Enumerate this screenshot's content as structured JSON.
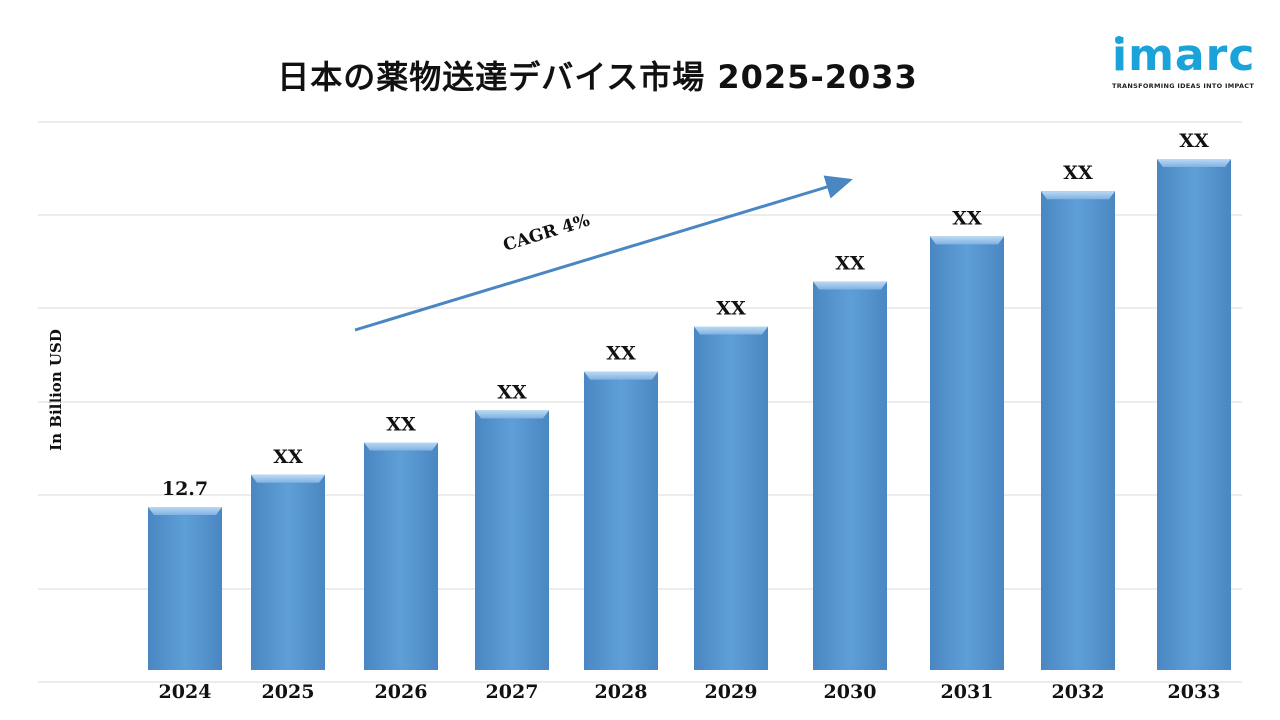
{
  "title": "日本の薬物送達デバイス市場 2025-2033",
  "logo": {
    "word": "imarc",
    "tagline": "TRANSFORMING IDEAS INTO IMPACT"
  },
  "chart_data": {
    "type": "bar",
    "categories": [
      "2024",
      "2025",
      "2026",
      "2027",
      "2028",
      "2029",
      "2030",
      "2031",
      "2032",
      "2033"
    ],
    "values": [
      12.7,
      13.2,
      13.7,
      14.2,
      14.8,
      15.5,
      16.2,
      16.9,
      17.6,
      18.1
    ],
    "data_labels": [
      "12.7",
      "XX",
      "XX",
      "XX",
      "XX",
      "XX",
      "XX",
      "XX",
      "XX",
      "XX"
    ],
    "ylabel": "In Billion USD",
    "annotation": "CAGR 4%",
    "bar_color": "#5b9bd5",
    "grid": true
  }
}
